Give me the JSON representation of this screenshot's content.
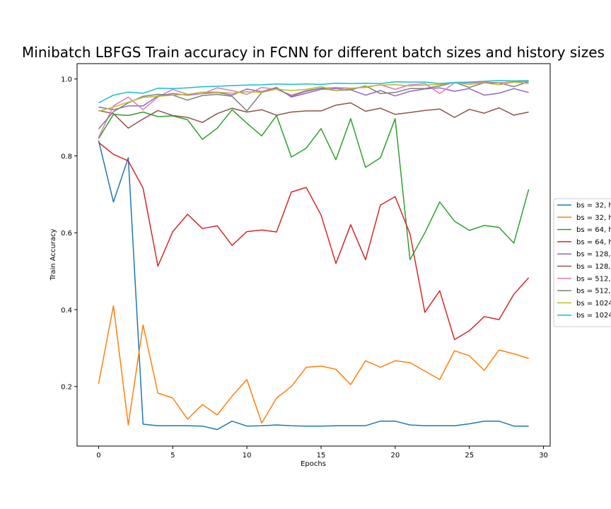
{
  "chart_data": {
    "type": "line",
    "title": "Minibatch LBFGS Train accuracy in FCNN for different batch sizes and history sizes",
    "xlabel": "Epochs",
    "ylabel": "Train Accuracy",
    "xlim": [
      -1.45,
      30.45
    ],
    "ylim": [
      0.045,
      1.04
    ],
    "xticks": [
      0,
      5,
      10,
      15,
      20,
      25,
      30
    ],
    "yticks": [
      0.2,
      0.4,
      0.6,
      0.8,
      1.0
    ],
    "xtick_labels": [
      "0",
      "5",
      "10",
      "15",
      "20",
      "25",
      "30"
    ],
    "ytick_labels": [
      "0.2",
      "0.4",
      "0.6",
      "0.8",
      "1.0"
    ],
    "grid": false,
    "legend_position": "right",
    "x": [
      0,
      1,
      2,
      3,
      4,
      5,
      6,
      7,
      8,
      9,
      10,
      11,
      12,
      13,
      14,
      15,
      16,
      17,
      18,
      19,
      20,
      21,
      22,
      23,
      24,
      25,
      26,
      27,
      28,
      29
    ],
    "series": [
      {
        "name": "bs = 32, h",
        "color": "#1f77b4",
        "values": [
          0.84,
          0.68,
          0.795,
          0.102,
          0.098,
          0.098,
          0.098,
          0.097,
          0.088,
          0.11,
          0.097,
          0.098,
          0.1,
          0.098,
          0.097,
          0.097,
          0.098,
          0.098,
          0.098,
          0.11,
          0.11,
          0.1,
          0.098,
          0.098,
          0.098,
          0.103,
          0.11,
          0.11,
          0.097,
          0.097
        ]
      },
      {
        "name": "bs = 32, h",
        "color": "#ff7f0e",
        "values": [
          0.207,
          0.41,
          0.1,
          0.36,
          0.183,
          0.17,
          0.115,
          0.153,
          0.126,
          0.175,
          0.218,
          0.105,
          0.17,
          0.2,
          0.25,
          0.253,
          0.245,
          0.205,
          0.267,
          0.25,
          0.267,
          0.262,
          0.24,
          0.218,
          0.293,
          0.28,
          0.242,
          0.295,
          0.285,
          0.273
        ]
      },
      {
        "name": "bs = 64, h",
        "color": "#2ca02c",
        "values": [
          0.845,
          0.908,
          0.905,
          0.914,
          0.902,
          0.904,
          0.894,
          0.843,
          0.872,
          0.92,
          0.885,
          0.852,
          0.905,
          0.797,
          0.82,
          0.871,
          0.79,
          0.897,
          0.77,
          0.795,
          0.897,
          0.53,
          0.6,
          0.68,
          0.63,
          0.606,
          0.619,
          0.614,
          0.573,
          0.713
        ]
      },
      {
        "name": "bs = 64, h",
        "color": "#d62728",
        "values": [
          0.835,
          0.804,
          0.787,
          0.716,
          0.513,
          0.603,
          0.648,
          0.611,
          0.618,
          0.567,
          0.603,
          0.607,
          0.602,
          0.706,
          0.718,
          0.646,
          0.52,
          0.621,
          0.53,
          0.672,
          0.694,
          0.597,
          0.393,
          0.449,
          0.322,
          0.345,
          0.382,
          0.374,
          0.44,
          0.483
        ]
      },
      {
        "name": "bs = 128,",
        "color": "#9467bd",
        "values": [
          0.927,
          0.92,
          0.93,
          0.93,
          0.956,
          0.962,
          0.958,
          0.962,
          0.965,
          0.958,
          0.974,
          0.967,
          0.978,
          0.953,
          0.963,
          0.973,
          0.975,
          0.972,
          0.958,
          0.97,
          0.956,
          0.968,
          0.974,
          0.977,
          0.968,
          0.975,
          0.958,
          0.963,
          0.975,
          0.965
        ]
      },
      {
        "name": "bs = 128,",
        "color": "#8c564b",
        "values": [
          0.918,
          0.91,
          0.872,
          0.896,
          0.918,
          0.905,
          0.9,
          0.887,
          0.91,
          0.924,
          0.914,
          0.92,
          0.906,
          0.914,
          0.917,
          0.917,
          0.932,
          0.938,
          0.916,
          0.924,
          0.908,
          0.913,
          0.918,
          0.922,
          0.9,
          0.921,
          0.911,
          0.925,
          0.906,
          0.914
        ]
      },
      {
        "name": "bs = 512,",
        "color": "#e377c2",
        "values": [
          0.848,
          0.93,
          0.953,
          0.92,
          0.953,
          0.973,
          0.96,
          0.962,
          0.977,
          0.97,
          0.96,
          0.978,
          0.973,
          0.958,
          0.97,
          0.976,
          0.978,
          0.976,
          0.978,
          0.985,
          0.973,
          0.985,
          0.988,
          0.962,
          0.99,
          0.99,
          0.992,
          0.99,
          0.993,
          0.993
        ]
      },
      {
        "name": "bs = 512,",
        "color": "#7f7f7f",
        "values": [
          0.87,
          0.915,
          0.938,
          0.955,
          0.96,
          0.958,
          0.945,
          0.957,
          0.96,
          0.955,
          0.917,
          0.965,
          0.976,
          0.955,
          0.968,
          0.976,
          0.97,
          0.972,
          0.982,
          0.962,
          0.965,
          0.975,
          0.975,
          0.982,
          0.991,
          0.978,
          0.99,
          0.99,
          0.98,
          0.993
        ]
      },
      {
        "name": "bs = 1024",
        "color": "#bcbd22",
        "values": [
          0.916,
          0.927,
          0.94,
          0.952,
          0.955,
          0.958,
          0.96,
          0.966,
          0.966,
          0.963,
          0.967,
          0.965,
          0.974,
          0.97,
          0.973,
          0.98,
          0.97,
          0.975,
          0.98,
          0.984,
          0.985,
          0.982,
          0.984,
          0.986,
          0.99,
          0.986,
          0.99,
          0.985,
          0.992,
          0.988
        ]
      },
      {
        "name": "bs = 1024",
        "color": "#17becf",
        "values": [
          0.938,
          0.958,
          0.966,
          0.963,
          0.976,
          0.975,
          0.977,
          0.98,
          0.981,
          0.983,
          0.984,
          0.985,
          0.987,
          0.986,
          0.987,
          0.986,
          0.989,
          0.988,
          0.989,
          0.988,
          0.993,
          0.992,
          0.992,
          0.988,
          0.991,
          0.992,
          0.994,
          0.996,
          0.995,
          0.996
        ]
      }
    ]
  }
}
